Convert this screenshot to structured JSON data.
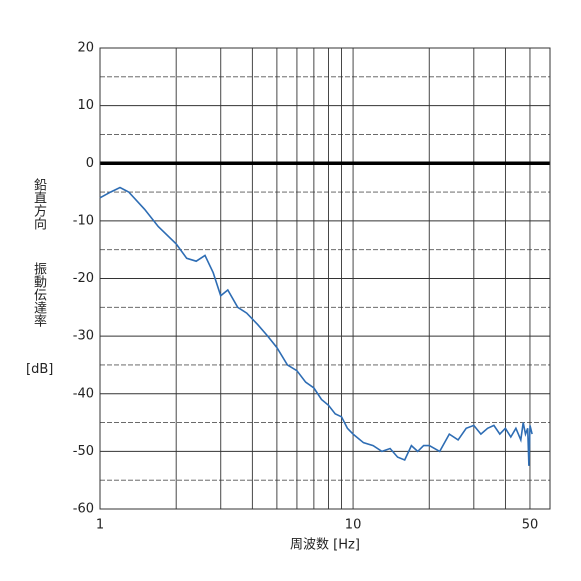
{
  "chart_data": {
    "type": "line",
    "ylabel": [
      "鉛直方向",
      "振動伝達率",
      "[dB]"
    ],
    "xlabel": "周波数 [Hz]",
    "log_x": true,
    "xlim": [
      1,
      60
    ],
    "xticks": [
      1,
      10,
      50
    ],
    "xgrid": [
      2,
      3,
      4,
      5,
      6,
      7,
      8,
      9,
      20,
      30,
      40
    ],
    "ylim": [
      -60,
      20
    ],
    "yticks": [
      -60,
      -50,
      -40,
      -30,
      -20,
      -10,
      0,
      10,
      20
    ],
    "ygrid_minor": [
      -55,
      -45,
      -35,
      -25,
      -15,
      -5,
      5,
      15
    ],
    "zero_line": 0,
    "grid": true,
    "series": [
      {
        "color": "#2e6db4",
        "x": [
          1,
          1.1,
          1.2,
          1.3,
          1.5,
          1.7,
          2,
          2.2,
          2.4,
          2.6,
          2.8,
          3,
          3.2,
          3.5,
          3.8,
          4.2,
          4.6,
          5,
          5.5,
          6,
          6.5,
          7,
          7.5,
          8,
          8.5,
          9,
          9.5,
          10,
          11,
          12,
          13,
          14,
          15,
          16,
          17,
          18,
          19,
          20,
          22,
          24,
          26,
          28,
          30,
          32,
          34,
          36,
          38,
          40,
          42,
          44,
          46,
          47,
          48,
          49,
          49.5,
          50,
          51
        ],
        "values": [
          -6,
          -5,
          -4.2,
          -5,
          -8,
          -11,
          -14,
          -16.5,
          -17,
          -16,
          -19,
          -23,
          -22,
          -25,
          -26,
          -28,
          -30,
          -32,
          -35,
          -36,
          -38,
          -39,
          -41,
          -42,
          -43.5,
          -44,
          -46,
          -47,
          -48.5,
          -49,
          -50,
          -49.5,
          -51,
          -51.5,
          -49,
          -50,
          -49,
          -49,
          -50,
          -47,
          -48,
          -46,
          -45.5,
          -47,
          -46,
          -45.5,
          -47,
          -46,
          -47.5,
          -46,
          -48,
          -45,
          -47,
          -46,
          -52.5,
          -45.5,
          -47
        ]
      }
    ]
  }
}
